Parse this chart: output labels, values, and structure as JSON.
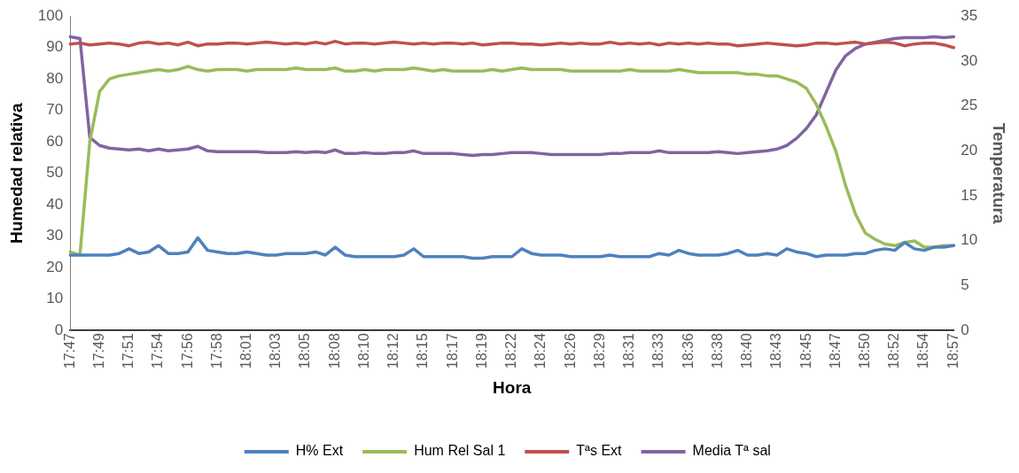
{
  "chart_data": {
    "type": "line",
    "xlabel": "Hora",
    "ylabel": "Humedad relativa",
    "y2label": "Temperatura",
    "categories": [
      "17:47",
      null,
      null,
      "17:49",
      null,
      null,
      "17:51",
      null,
      null,
      "17:54",
      null,
      null,
      "17:56",
      null,
      null,
      "17:58",
      null,
      null,
      "18:01",
      null,
      null,
      "18:03",
      null,
      null,
      "18:05",
      null,
      null,
      "18:08",
      null,
      null,
      "18:10",
      null,
      null,
      "18:12",
      null,
      null,
      "18:15",
      null,
      null,
      "18:17",
      null,
      null,
      "18:19",
      null,
      null,
      "18:22",
      null,
      null,
      "18:24",
      null,
      null,
      "18:26",
      null,
      null,
      "18:29",
      null,
      null,
      "18:31",
      null,
      null,
      "18:33",
      null,
      null,
      "18:36",
      null,
      null,
      "18:38",
      null,
      null,
      "18:40",
      null,
      null,
      "18:43",
      null,
      null,
      "18:45",
      null,
      null,
      "18:47",
      null,
      null,
      "18:50",
      null,
      null,
      "18:52",
      null,
      null,
      "18:54",
      null,
      null,
      "18:57"
    ],
    "series": [
      {
        "name": "H% Ext",
        "color": "#4f81bd",
        "values": [
          24,
          24,
          24,
          24,
          24,
          24.5,
          26,
          24.5,
          25,
          27,
          24.5,
          24.5,
          25,
          29.5,
          25.5,
          25,
          24.5,
          24.5,
          25,
          24.5,
          24,
          24,
          24.5,
          24.5,
          24.5,
          25,
          24,
          26.5,
          24,
          23.5,
          23.5,
          23.5,
          23.5,
          23.5,
          24,
          26,
          23.5,
          23.5,
          23.5,
          23.5,
          23.5,
          23,
          23,
          23.5,
          23.5,
          23.5,
          26,
          24.5,
          24,
          24,
          24,
          23.5,
          23.5,
          23.5,
          23.5,
          24,
          23.5,
          23.5,
          23.5,
          23.5,
          24.5,
          24,
          25.5,
          24.5,
          24,
          24,
          24,
          24.5,
          25.5,
          24,
          24,
          24.5,
          24,
          26,
          25,
          24.5,
          23.5,
          24,
          24,
          24,
          24.5,
          24.5,
          25.5,
          26,
          25.5,
          28,
          26,
          25.5,
          26.5,
          26.5,
          27
        ]
      },
      {
        "name": "Hum Rel Sal 1",
        "color": "#9bbb59",
        "values": [
          25,
          24,
          60,
          76,
          80,
          81,
          81.5,
          82,
          82.5,
          83,
          82.5,
          83,
          84,
          83,
          82.5,
          83,
          83,
          83,
          82.5,
          83,
          83,
          83,
          83,
          83.5,
          83,
          83,
          83,
          83.5,
          82.5,
          82.5,
          83,
          82.5,
          83,
          83,
          83,
          83.5,
          83,
          82.5,
          83,
          82.5,
          82.5,
          82.5,
          82.5,
          83,
          82.5,
          83,
          83.5,
          83,
          83,
          83,
          83,
          82.5,
          82.5,
          82.5,
          82.5,
          82.5,
          82.5,
          83,
          82.5,
          82.5,
          82.5,
          82.5,
          83,
          82.5,
          82,
          82,
          82,
          82,
          82,
          81.5,
          81.5,
          81,
          81,
          80,
          79,
          77,
          72,
          65,
          57,
          46,
          37,
          31,
          29,
          27.5,
          27,
          28,
          28.5,
          26.5,
          26.5,
          27,
          27
        ]
      },
      {
        "name": "Tªs Ext",
        "color": "#c0504d",
        "axis": "y2",
        "values": [
          31.9,
          32.0,
          31.8,
          31.9,
          32.0,
          31.9,
          31.7,
          32.0,
          32.1,
          31.9,
          32.0,
          31.8,
          32.1,
          31.7,
          31.9,
          31.9,
          32.0,
          32.0,
          31.9,
          32.0,
          32.1,
          32.0,
          31.9,
          32.0,
          31.9,
          32.1,
          31.9,
          32.2,
          31.9,
          32.0,
          32.0,
          31.9,
          32.0,
          32.1,
          32.0,
          31.9,
          32.0,
          31.9,
          32.0,
          32.0,
          31.9,
          32.0,
          31.8,
          31.9,
          32.0,
          32.0,
          31.9,
          31.9,
          31.8,
          31.9,
          32.0,
          31.9,
          32.0,
          31.9,
          31.9,
          32.1,
          31.9,
          32.0,
          31.9,
          32.0,
          31.8,
          32.0,
          31.9,
          32.0,
          31.9,
          32.0,
          31.9,
          31.9,
          31.7,
          31.8,
          31.9,
          32.0,
          31.9,
          31.8,
          31.7,
          31.8,
          32.0,
          32.0,
          31.9,
          32.0,
          32.1,
          31.9,
          32.0,
          32.1,
          32.0,
          31.7,
          31.9,
          32.0,
          32.0,
          31.8,
          31.5
        ]
      },
      {
        "name": "Media Tª sal",
        "color": "#8064a2",
        "axis": "y2",
        "values": [
          32.7,
          32.5,
          21.5,
          20.6,
          20.3,
          20.2,
          20.1,
          20.2,
          20.0,
          20.2,
          20.0,
          20.1,
          20.2,
          20.5,
          20.0,
          19.9,
          19.9,
          19.9,
          19.9,
          19.9,
          19.8,
          19.8,
          19.8,
          19.9,
          19.8,
          19.9,
          19.8,
          20.1,
          19.7,
          19.7,
          19.8,
          19.7,
          19.7,
          19.8,
          19.8,
          20.0,
          19.7,
          19.7,
          19.7,
          19.7,
          19.6,
          19.5,
          19.6,
          19.6,
          19.7,
          19.8,
          19.8,
          19.8,
          19.7,
          19.6,
          19.6,
          19.6,
          19.6,
          19.6,
          19.6,
          19.7,
          19.7,
          19.8,
          19.8,
          19.8,
          20.0,
          19.8,
          19.8,
          19.8,
          19.8,
          19.8,
          19.9,
          19.8,
          19.7,
          19.8,
          19.9,
          20.0,
          20.2,
          20.6,
          21.4,
          22.5,
          24.0,
          26.5,
          29.0,
          30.6,
          31.4,
          31.9,
          32.1,
          32.3,
          32.5,
          32.6,
          32.6,
          32.6,
          32.7,
          32.6,
          32.7
        ]
      }
    ],
    "ylim": [
      0,
      100
    ],
    "yticks": [
      0,
      10,
      20,
      30,
      40,
      50,
      60,
      70,
      80,
      90,
      100
    ],
    "y2lim": [
      0,
      35
    ],
    "y2ticks": [
      0,
      5,
      10,
      15,
      20,
      25,
      30,
      35
    ],
    "grid": false,
    "legend": "bottom",
    "marker": "none",
    "line_style": "solid"
  }
}
